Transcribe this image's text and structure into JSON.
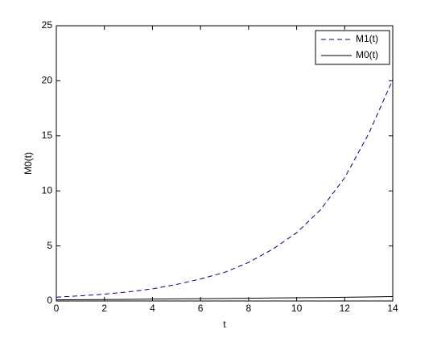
{
  "chart_data": {
    "type": "line",
    "x_label": "t",
    "y_label": "M0(t)",
    "x": [
      0,
      1,
      2,
      3,
      4,
      5,
      6,
      7,
      8,
      9,
      10,
      11,
      12,
      13,
      14
    ],
    "series": [
      {
        "name": "M1(t)",
        "color": "#000080",
        "dash": true,
        "values": [
          0.35,
          0.47,
          0.62,
          0.83,
          1.1,
          1.5,
          2.0,
          2.6,
          3.5,
          4.7,
          6.2,
          8.3,
          11.2,
          15.2,
          20.1
        ]
      },
      {
        "name": "M0(t)",
        "color": "#000000",
        "dash": false,
        "values": [
          0.1,
          0.12,
          0.13,
          0.15,
          0.17,
          0.19,
          0.21,
          0.23,
          0.25,
          0.27,
          0.29,
          0.31,
          0.34,
          0.37,
          0.4
        ]
      }
    ],
    "xlim": [
      0,
      14
    ],
    "xticks": [
      0,
      2,
      4,
      6,
      8,
      10,
      12,
      14
    ],
    "ylim": [
      0,
      25
    ],
    "yticks": [
      0,
      5,
      10,
      15,
      20,
      25
    ],
    "grid": false,
    "legend": "upper right"
  }
}
